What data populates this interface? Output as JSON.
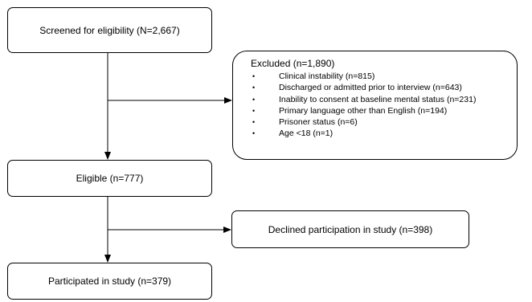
{
  "boxes": {
    "screened": "Screened for eligibility (N=2,667)",
    "eligible": "Eligible (n=777)",
    "declined": "Declined participation in study (n=398)",
    "participated": "Participated in study (n=379)"
  },
  "excluded": {
    "title": "Excluded (n=1,890)",
    "bullet_glyph": "•",
    "items": [
      "Clinical instability (n=815)",
      "Discharged or admitted prior to interview (n=643)",
      "Inability to consent at baseline mental status (n=231)",
      "Primary language other than English (n=194)",
      "Prisoner status (n=6)",
      "Age <18 (n=1)"
    ]
  },
  "colors": {
    "stroke": "#000000",
    "fill": "#ffffff",
    "text": "#000000"
  }
}
